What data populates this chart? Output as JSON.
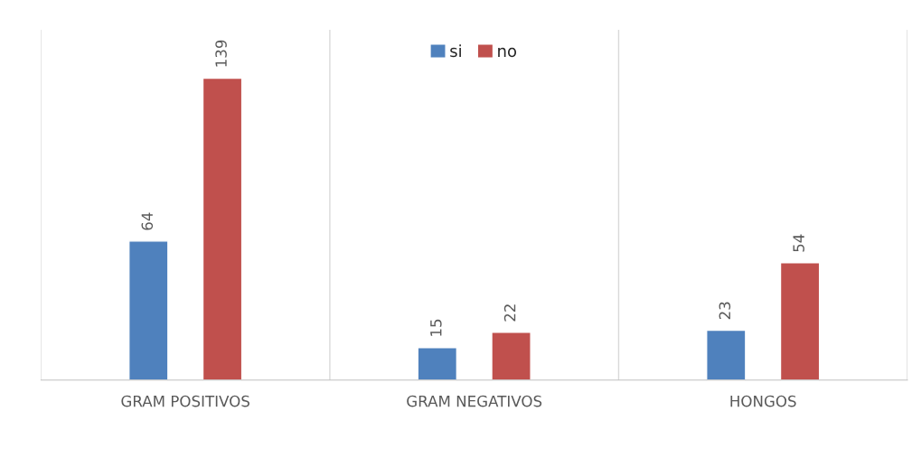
{
  "chart_data": {
    "type": "bar",
    "categories": [
      "GRAM POSITIVOS",
      "GRAM NEGATIVOS",
      "HONGOS"
    ],
    "series": [
      {
        "name": "si",
        "color": "#4f81bd",
        "values": [
          64,
          15,
          23
        ]
      },
      {
        "name": "no",
        "color": "#c0504d",
        "values": [
          139,
          22,
          54
        ]
      }
    ],
    "data_labels": true,
    "legend": "top",
    "grid": "x",
    "tick_labels": "x"
  }
}
